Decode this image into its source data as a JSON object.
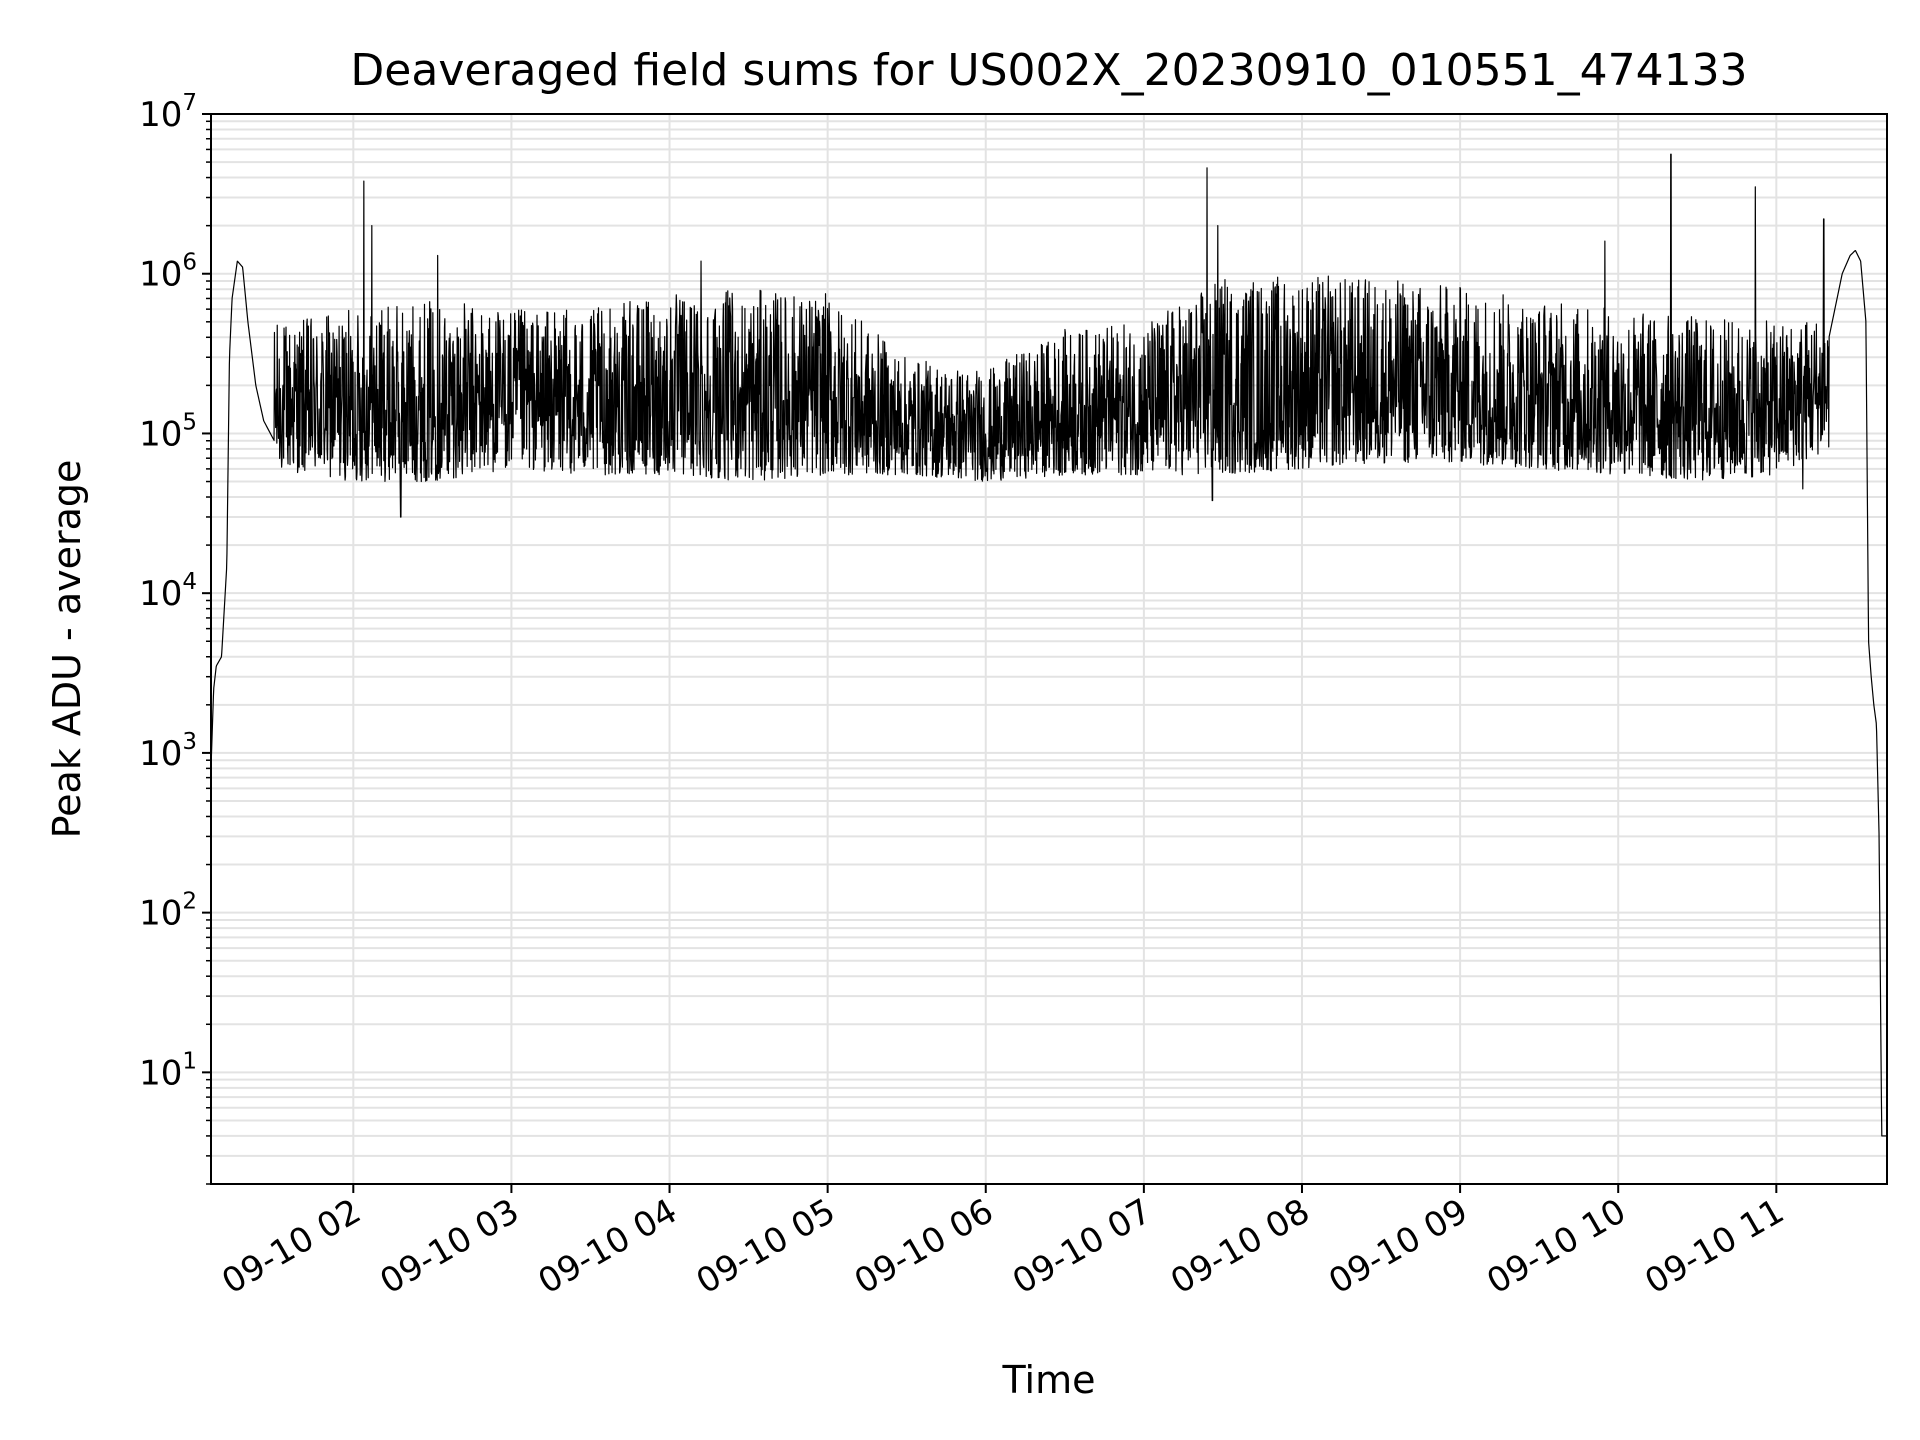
{
  "chart_data": {
    "type": "line",
    "title": "Deaveraged field sums for US002X_20230910_010551_474133",
    "xlabel": "Time",
    "ylabel": "Peak ADU - average",
    "yscale": "log",
    "ylim": [
      2,
      10000000
    ],
    "xlim": [
      "2023-09-10 01:06",
      "2023-09-10 11:42"
    ],
    "grid": "on",
    "line_color": "#000000",
    "grid_color": "#e3e3e3",
    "x_ticks": [
      {
        "time": "2023-09-10 02:00",
        "label": "09-10 02"
      },
      {
        "time": "2023-09-10 03:00",
        "label": "09-10 03"
      },
      {
        "time": "2023-09-10 04:00",
        "label": "09-10 04"
      },
      {
        "time": "2023-09-10 05:00",
        "label": "09-10 05"
      },
      {
        "time": "2023-09-10 06:00",
        "label": "09-10 06"
      },
      {
        "time": "2023-09-10 07:00",
        "label": "09-10 07"
      },
      {
        "time": "2023-09-10 08:00",
        "label": "09-10 08"
      },
      {
        "time": "2023-09-10 09:00",
        "label": "09-10 09"
      },
      {
        "time": "2023-09-10 10:00",
        "label": "09-10 10"
      },
      {
        "time": "2023-09-10 11:00",
        "label": "09-10 11"
      }
    ],
    "y_ticks": [
      {
        "value": 10,
        "base": "10",
        "exp": "1"
      },
      {
        "value": 100,
        "base": "10",
        "exp": "2"
      },
      {
        "value": 1000,
        "base": "10",
        "exp": "3"
      },
      {
        "value": 10000,
        "base": "10",
        "exp": "4"
      },
      {
        "value": 100000,
        "base": "10",
        "exp": "5"
      },
      {
        "value": 1000000,
        "base": "10",
        "exp": "6"
      },
      {
        "value": 10000000,
        "base": "10",
        "exp": "7"
      }
    ],
    "x": [
      "2023-09-10 01:06",
      "2023-09-10 01:07",
      "2023-09-10 01:08",
      "2023-09-10 01:10",
      "2023-09-10 01:12",
      "2023-09-10 01:13",
      "2023-09-10 01:14",
      "2023-09-10 01:16",
      "2023-09-10 01:18",
      "2023-09-10 01:20",
      "2023-09-10 01:23",
      "2023-09-10 01:26",
      "2023-09-10 01:30",
      "2023-09-10 01:35",
      "2023-09-10 01:40",
      "2023-09-10 01:45",
      "2023-09-10 01:50",
      "2023-09-10 01:55",
      "2023-09-10 02:00",
      "2023-09-10 02:03",
      "2023-09-10 02:10",
      "2023-09-10 02:20",
      "2023-09-10 02:30",
      "2023-09-10 02:45",
      "2023-09-10 03:00",
      "2023-09-10 03:15",
      "2023-09-10 03:30",
      "2023-09-10 03:45",
      "2023-09-10 04:00",
      "2023-09-10 04:15",
      "2023-09-10 04:30",
      "2023-09-10 04:45",
      "2023-09-10 05:00",
      "2023-09-10 05:15",
      "2023-09-10 05:30",
      "2023-09-10 05:45",
      "2023-09-10 06:00",
      "2023-09-10 06:15",
      "2023-09-10 06:30",
      "2023-09-10 06:45",
      "2023-09-10 07:00",
      "2023-09-10 07:15",
      "2023-09-10 07:30",
      "2023-09-10 07:45",
      "2023-09-10 08:00",
      "2023-09-10 08:15",
      "2023-09-10 08:30",
      "2023-09-10 08:45",
      "2023-09-10 09:00",
      "2023-09-10 09:15",
      "2023-09-10 09:30",
      "2023-09-10 09:45",
      "2023-09-10 10:00",
      "2023-09-10 10:15",
      "2023-09-10 10:30",
      "2023-09-10 10:45",
      "2023-09-10 11:00",
      "2023-09-10 11:10",
      "2023-09-10 11:20",
      "2023-09-10 11:25",
      "2023-09-10 11:28",
      "2023-09-10 11:30",
      "2023-09-10 11:32",
      "2023-09-10 11:34",
      "2023-09-10 11:35",
      "2023-09-10 11:36",
      "2023-09-10 11:37",
      "2023-09-10 11:38",
      "2023-09-10 11:39",
      "2023-09-10 11:40",
      "2023-09-10 11:41",
      "2023-09-10 11:42"
    ],
    "y": [
      800,
      2500,
      3500,
      4000,
      15000,
      300000,
      700000,
      1200000,
      1100000,
      500000,
      200000,
      120000,
      90000,
      110000,
      100000,
      150000,
      200000,
      300000,
      250000,
      350000,
      300000,
      350000,
      400000,
      300000,
      150000,
      120000,
      100000,
      90000,
      150000,
      350000,
      450000,
      550000,
      400000,
      200000,
      100000,
      90000,
      90000,
      90000,
      100000,
      100000,
      120000,
      300000,
      500000,
      550000,
      600000,
      650000,
      600000,
      500000,
      400000,
      300000,
      250000,
      220000,
      200000,
      250000,
      200000,
      180000,
      250000,
      300000,
      400000,
      1000000,
      1300000,
      1400000,
      1200000,
      500000,
      5000,
      3000,
      2000,
      1500,
      300,
      4,
      4,
      4
    ],
    "noise_band": [
      {
        "x": [
          "2023-09-10 01:30",
          "2023-09-10 02:00",
          "2023-09-10 02:30",
          "2023-09-10 03:00",
          "2023-09-10 03:30",
          "2023-09-10 04:00",
          "2023-09-10 04:30",
          "2023-09-10 05:00",
          "2023-09-10 05:30",
          "2023-09-10 06:00",
          "2023-09-10 06:30",
          "2023-09-10 07:00",
          "2023-09-10 07:30",
          "2023-09-10 08:00",
          "2023-09-10 08:30",
          "2023-09-10 09:00",
          "2023-09-10 09:30",
          "2023-09-10 10:00",
          "2023-09-10 10:30",
          "2023-09-10 11:00",
          "2023-09-10 11:20"
        ],
        "low": [
          60000,
          50000,
          50000,
          60000,
          55000,
          55000,
          50000,
          55000,
          55000,
          50000,
          55000,
          55000,
          55000,
          60000,
          65000,
          65000,
          60000,
          55000,
          50000,
          55000,
          80000
        ],
        "high": [
          500000,
          600000,
          700000,
          600000,
          600000,
          750000,
          800000,
          750000,
          300000,
          250000,
          450000,
          500000,
          950000,
          1000000,
          950000,
          850000,
          700000,
          600000,
          550000,
          500000,
          600000
        ]
      }
    ],
    "spikes": [
      {
        "time": "2023-09-10 02:04",
        "value": 3800000
      },
      {
        "time": "2023-09-10 02:07",
        "value": 2000000
      },
      {
        "time": "2023-09-10 02:18",
        "value": 30000
      },
      {
        "time": "2023-09-10 02:32",
        "value": 1300000
      },
      {
        "time": "2023-09-10 04:12",
        "value": 1200000
      },
      {
        "time": "2023-09-10 07:24",
        "value": 4600000
      },
      {
        "time": "2023-09-10 07:26",
        "value": 38000
      },
      {
        "time": "2023-09-10 07:28",
        "value": 2000000
      },
      {
        "time": "2023-09-10 09:55",
        "value": 1600000
      },
      {
        "time": "2023-09-10 10:20",
        "value": 5600000
      },
      {
        "time": "2023-09-10 10:52",
        "value": 3500000
      },
      {
        "time": "2023-09-10 11:10",
        "value": 45000
      },
      {
        "time": "2023-09-10 11:18",
        "value": 2200000
      }
    ]
  }
}
